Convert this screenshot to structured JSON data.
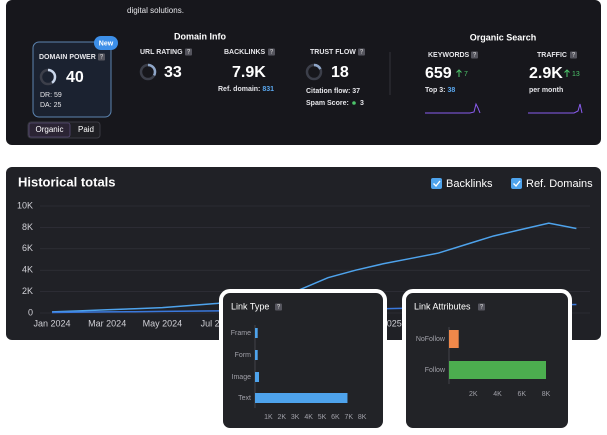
{
  "intro": "digital solutions.",
  "help_icon": "?",
  "domain_power": {
    "badge": "New",
    "label": "DOMAIN POWER",
    "value": 40,
    "dr_label": "DR:",
    "dr": 59,
    "da_label": "DA:",
    "da": 25
  },
  "tabs": [
    "Organic",
    "Paid"
  ],
  "domain_info": {
    "title": "Domain Info",
    "url_rating": {
      "label": "URL RATING",
      "value": 33
    },
    "backlinks": {
      "label": "BACKLINKS",
      "value": "7.9K",
      "ref_label": "Ref. domain:",
      "ref_value": 831
    },
    "trust_flow": {
      "label": "TRUST FLOW",
      "value": 18,
      "citation_label": "Citation flow:",
      "citation": 37,
      "spam_label": "Spam Score:",
      "spam": 3
    }
  },
  "organic_search": {
    "title": "Organic Search",
    "keywords": {
      "label": "KEYWORDS",
      "value": 659,
      "change": 7,
      "top3_label": "Top 3:",
      "top3": 38
    },
    "traffic": {
      "label": "TRAFFIC",
      "value": "2.9K",
      "change": 13,
      "period": "per month"
    }
  },
  "chart_data": [
    {
      "type": "line",
      "title": "Historical totals",
      "categories": [
        "Jan 2024",
        null,
        "Mar 2024",
        null,
        "May 2024",
        null,
        "Jul 2024",
        null,
        null,
        null,
        null,
        null,
        "Jan 2025",
        null,
        null,
        null,
        null,
        null,
        null,
        null
      ],
      "series": [
        {
          "name": "Backlinks",
          "color": "#4ea3ec",
          "values": [
            100,
            200,
            300,
            400,
            500,
            700,
            900,
            1200,
            1600,
            2200,
            3300,
            4000,
            4600,
            5100,
            5600,
            6400,
            7200,
            7800,
            8400,
            7900
          ]
        },
        {
          "name": "Ref. Domains",
          "color": "#3a78dc",
          "values": [
            50,
            80,
            100,
            120,
            150,
            180,
            200,
            230,
            260,
            300,
            330,
            370,
            400,
            450,
            500,
            550,
            600,
            650,
            750,
            800
          ]
        }
      ],
      "ylim": [
        0,
        10000
      ],
      "yticks": [
        0,
        {
          "value": 2000,
          "label": "2K"
        },
        {
          "value": 4000,
          "label": "4K"
        },
        {
          "value": 6000,
          "label": "6K"
        },
        {
          "value": 8000,
          "label": "8K"
        },
        {
          "value": 10000,
          "label": "10K"
        }
      ],
      "grid": true
    },
    {
      "type": "barh",
      "title": "Link Type",
      "categories": [
        "Frame",
        "Form",
        "Image",
        "Text"
      ],
      "values": [
        200,
        200,
        300,
        6900
      ],
      "color": "#4ea3ec",
      "xlim": [
        0,
        8000
      ],
      "xticks": [
        {
          "value": 1000,
          "label": "1K"
        },
        {
          "value": 2000,
          "label": "2K"
        },
        {
          "value": 3000,
          "label": "3K"
        },
        {
          "value": 4000,
          "label": "4K"
        },
        {
          "value": 5000,
          "label": "5K"
        },
        {
          "value": 6000,
          "label": "6K"
        },
        {
          "value": 7000,
          "label": "7K"
        },
        {
          "value": 8000,
          "label": "8K"
        }
      ]
    },
    {
      "type": "barh",
      "title": "Link Attributes",
      "categories": [
        "NoFollow",
        "Follow"
      ],
      "values": [
        800,
        8000
      ],
      "colors": [
        "#f0884a",
        "#4cae4f"
      ],
      "xlim": [
        0,
        8000
      ],
      "xticks": [
        {
          "value": 2000,
          "label": "2K"
        },
        {
          "value": 4000,
          "label": "4K"
        },
        {
          "value": 6000,
          "label": "6K"
        },
        {
          "value": 8000,
          "label": "8K"
        }
      ]
    }
  ]
}
